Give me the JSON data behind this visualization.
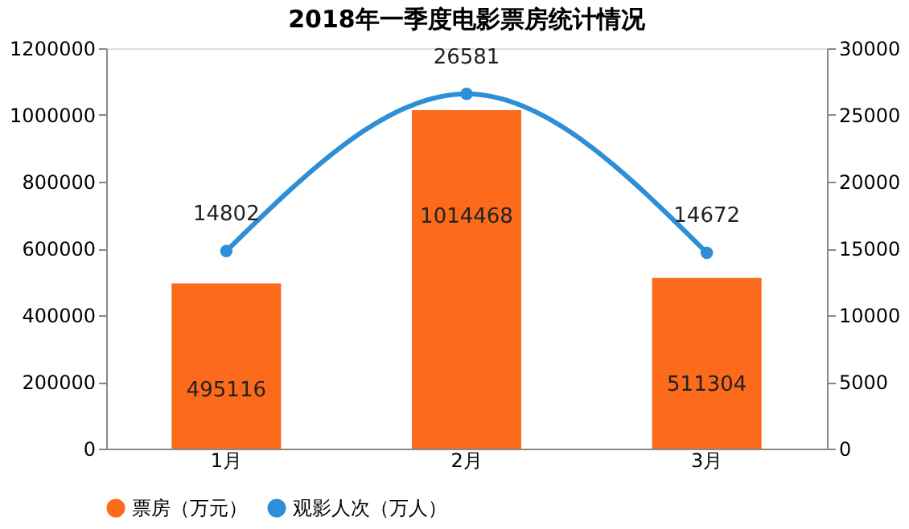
{
  "chart_data": {
    "type": "bar",
    "title": "2018年一季度电影票房统计情况",
    "categories": [
      "1月",
      "2月",
      "3月"
    ],
    "series": [
      {
        "name": "票房（万元）",
        "color": "#fc6a1b",
        "values": [
          495116,
          1014468,
          511304
        ]
      },
      {
        "name": "观影人次（万人）",
        "type": "line",
        "axis": "y2",
        "color": "#2e8fd6",
        "values": [
          14802,
          26581,
          14672
        ]
      }
    ],
    "ylim": [
      0,
      1200000
    ],
    "yticks": [
      0,
      200000,
      400000,
      600000,
      800000,
      1000000,
      1200000
    ],
    "y2lim": [
      0,
      30000
    ],
    "y2ticks": [
      0,
      5000,
      10000,
      15000,
      20000,
      25000,
      30000
    ],
    "data_labels": true,
    "legend": "bottom",
    "grid": false,
    "marker": "circle",
    "line_style": "solid"
  }
}
